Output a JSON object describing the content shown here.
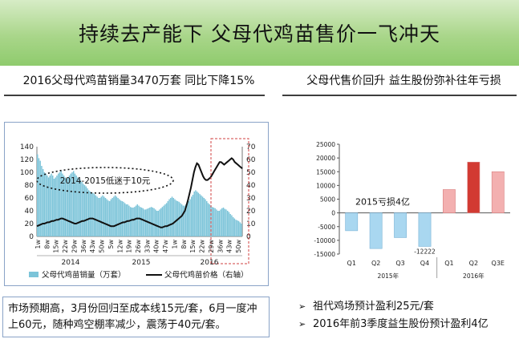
{
  "title": "持续去产能下  父母代鸡苗售价一飞冲天",
  "left_heading": "2016父母代鸡苗销量3470万套  同比下降15%",
  "right_heading": "父母代售价回升  益生股份弥补往年亏损",
  "note": "市场预期高，3月份回归至成本线15元/套，6月一度冲上60元，随种鸡空棚率减少，震荡于40元/套。",
  "bullets": [
    "祖代鸡场预计盈利25元/套",
    "2016年前3季度益生股份预计盈利4亿"
  ],
  "chart_data": [
    {
      "type": "bar+line",
      "annotation": "2014-2015低迷于10元",
      "legend": [
        "父母代鸡苗销量（万套）",
        "父母代鸡苗价格（右轴）"
      ],
      "y_left": {
        "ticks": [
          0,
          20,
          40,
          60,
          80,
          100,
          120,
          140
        ],
        "range": [
          0,
          140
        ]
      },
      "y_right": {
        "ticks": [
          0,
          10,
          20,
          30,
          40,
          50,
          60,
          70
        ],
        "range": [
          0,
          70
        ]
      },
      "x_tick_labels": [
        "1w",
        "8w",
        "15w",
        "22w",
        "29w",
        "36w",
        "43w",
        "50w",
        "5w",
        "12w",
        "19w",
        "26w",
        "33w",
        "40w",
        "47w",
        "1w",
        "8w",
        "15w",
        "22w",
        "29w",
        "36w",
        "43w",
        "50w"
      ],
      "year_labels": [
        "2014",
        "2015",
        "2016"
      ],
      "series": [
        {
          "name": "父母代鸡苗销量（万套）",
          "axis": "left",
          "values": [
            128,
            122,
            118,
            110,
            105,
            100,
            98,
            95,
            92,
            95,
            98,
            95,
            90,
            92,
            95,
            98,
            100,
            102,
            98,
            95,
            92,
            90,
            92,
            95,
            98,
            100,
            102,
            98,
            95,
            92,
            90,
            88,
            85,
            82,
            80,
            78,
            75,
            72,
            70,
            68,
            68,
            66,
            64,
            62,
            60,
            60,
            62,
            64,
            62,
            60,
            58,
            56,
            55,
            58,
            60,
            62,
            64,
            62,
            60,
            58,
            56,
            55,
            54,
            52,
            50,
            50,
            48,
            46,
            45,
            45,
            46,
            48,
            50,
            48,
            46,
            45,
            44,
            42,
            42,
            43,
            44,
            45,
            46,
            45,
            44,
            42,
            40,
            40,
            42,
            44,
            46,
            48,
            50,
            52,
            55,
            58,
            60,
            62,
            60,
            58,
            56,
            55,
            54,
            52,
            50,
            48,
            48,
            50,
            52,
            55,
            58,
            62,
            65,
            70,
            72,
            70,
            68,
            66,
            64,
            62,
            60,
            58,
            55,
            52,
            50,
            48,
            46,
            45,
            44,
            42,
            40,
            40,
            42,
            44,
            45,
            43,
            42,
            40,
            38,
            35,
            33,
            30,
            28,
            26,
            25,
            24,
            22,
            20
          ]
        },
        {
          "name": "父母代鸡苗价格（右轴）",
          "axis": "right",
          "values": [
            8,
            8.5,
            9,
            9.5,
            10,
            10,
            10.5,
            11,
            11,
            11.5,
            12,
            12,
            12.5,
            13,
            13,
            13.5,
            14,
            14,
            13.5,
            13,
            12.5,
            12,
            11.5,
            11,
            10.5,
            10,
            10,
            10.5,
            11,
            11.5,
            12,
            12,
            12.5,
            13,
            13.5,
            14,
            14,
            14,
            13.5,
            13,
            12.5,
            12,
            11.5,
            11,
            10.5,
            10,
            9.5,
            9,
            8.5,
            8,
            8,
            8,
            8.5,
            9,
            9.5,
            10,
            10.5,
            11,
            11,
            11.5,
            12,
            12,
            12.5,
            13,
            13,
            13.5,
            14,
            14,
            14,
            13.5,
            13,
            12.5,
            12,
            11.5,
            11,
            10.5,
            10,
            9.5,
            9,
            8.5,
            8,
            7.5,
            7,
            7,
            7.5,
            8,
            8,
            8.5,
            9,
            9.5,
            10,
            11,
            12,
            13,
            14,
            15,
            16,
            18,
            20,
            24,
            28,
            33,
            38,
            44,
            50,
            54,
            57,
            56,
            53,
            50,
            47,
            45,
            44,
            44,
            45,
            46,
            48,
            50,
            52,
            54,
            56,
            58,
            58,
            57,
            56,
            57,
            58,
            59,
            60,
            61,
            60,
            58,
            57,
            56,
            55,
            54,
            53
          ]
        }
      ]
    },
    {
      "type": "bar",
      "annotation": "2015亏损4亿",
      "y_ticks": [
        -15000,
        -10000,
        -5000,
        0,
        5000,
        10000,
        15000,
        20000,
        25000
      ],
      "ylim": [
        -15000,
        25000
      ],
      "categories": [
        "Q1",
        "Q2",
        "Q3",
        "Q4",
        "Q1",
        "Q2",
        "Q3E"
      ],
      "groups": [
        "2015年",
        "2016年"
      ],
      "values": [
        -6500,
        -13000,
        -9000,
        -12222,
        8500,
        18500,
        15000
      ],
      "data_labels": [
        "",
        "",
        "",
        "-12222",
        "",
        "",
        ""
      ],
      "colors": {
        "loss": "#a9d7f0",
        "profit": "#f3b0b0",
        "highlight": "#d23a32"
      }
    }
  ]
}
